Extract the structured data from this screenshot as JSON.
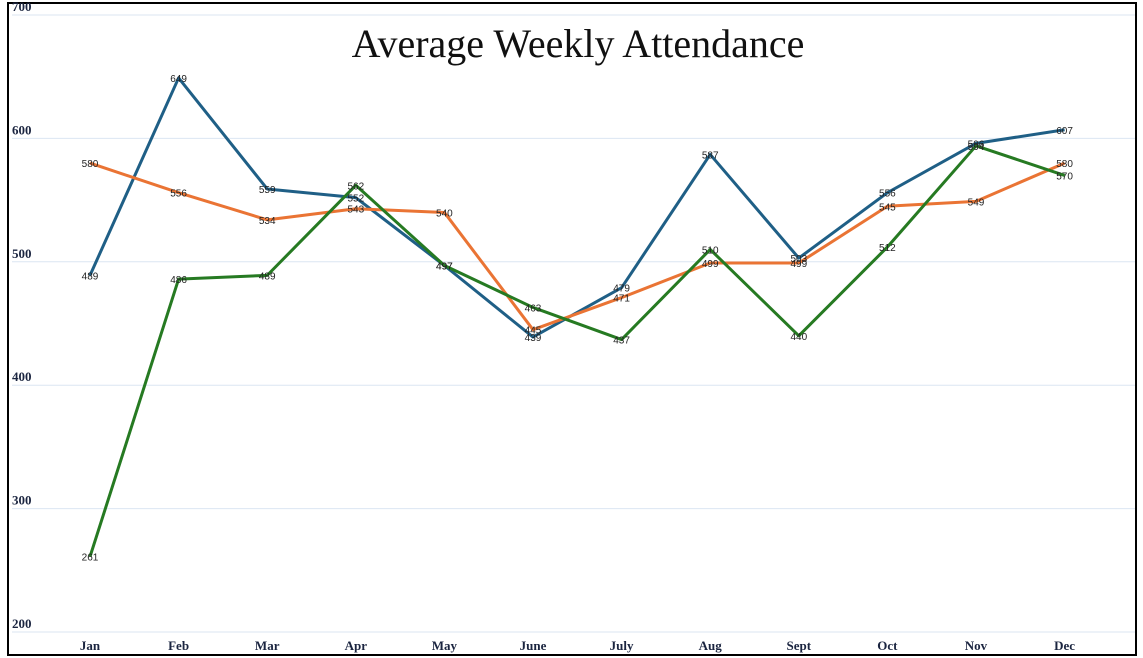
{
  "chart_data": {
    "type": "line",
    "title": "Average Weekly Attendance",
    "categories": [
      "Jan",
      "Feb",
      "Mar",
      "Apr",
      "May",
      "June",
      "July",
      "Aug",
      "Sept",
      "Oct",
      "Nov",
      "Dec"
    ],
    "series": [
      {
        "color": "#1f5f86",
        "values": [
          489,
          649,
          559,
          552,
          497,
          439,
          479,
          587,
          503,
          556,
          596,
          607
        ]
      },
      {
        "color": "#ea7434",
        "values": [
          580,
          556,
          534,
          543,
          540,
          445,
          471,
          499,
          499,
          545,
          549,
          580
        ]
      },
      {
        "color": "#267a22",
        "values": [
          261,
          486,
          489,
          562,
          497,
          463,
          437,
          510,
          440,
          512,
          594,
          570
        ]
      }
    ],
    "ylim": [
      200,
      700
    ],
    "yticks": [
      200,
      300,
      400,
      500,
      600,
      700
    ],
    "grid": true
  }
}
